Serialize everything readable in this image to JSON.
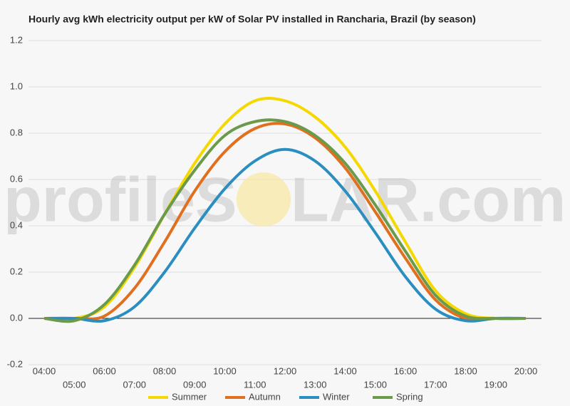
{
  "chart_data": {
    "type": "line",
    "title": "Hourly avg kWh electricity output per kW of Solar PV installed in Rancharia, Brazil (by season)",
    "watermark": [
      "profileS",
      "LAR.com"
    ],
    "categories": [
      "04:00",
      "05:00",
      "06:00",
      "07:00",
      "08:00",
      "09:00",
      "10:00",
      "11:00",
      "12:00",
      "13:00",
      "14:00",
      "15:00",
      "16:00",
      "17:00",
      "18:00",
      "19:00",
      "20:00"
    ],
    "series": [
      {
        "name": "Summer",
        "color": "#f5d800",
        "values": [
          0,
          0,
          0.05,
          0.22,
          0.45,
          0.67,
          0.84,
          0.94,
          0.94,
          0.87,
          0.74,
          0.55,
          0.33,
          0.12,
          0.02,
          0,
          0
        ]
      },
      {
        "name": "Autumn",
        "color": "#e07020",
        "values": [
          0,
          0,
          0.01,
          0.13,
          0.33,
          0.55,
          0.72,
          0.82,
          0.84,
          0.78,
          0.65,
          0.46,
          0.26,
          0.08,
          0,
          0,
          0
        ]
      },
      {
        "name": "Winter",
        "color": "#2a8fc0",
        "values": [
          0,
          0,
          -0.01,
          0.05,
          0.2,
          0.39,
          0.56,
          0.68,
          0.73,
          0.68,
          0.55,
          0.37,
          0.18,
          0.04,
          -0.01,
          0,
          0
        ]
      },
      {
        "name": "Spring",
        "color": "#6a9a4a",
        "values": [
          0,
          -0.01,
          0.06,
          0.23,
          0.45,
          0.64,
          0.79,
          0.85,
          0.85,
          0.79,
          0.67,
          0.49,
          0.29,
          0.1,
          0.01,
          0,
          0
        ]
      }
    ],
    "ylim": [
      -0.2,
      1.2
    ],
    "yticks": [
      -0.2,
      {
        "value": 0,
        "label": "0.0"
      },
      0.2,
      0.4,
      0.6,
      0.8,
      {
        "value": 1,
        "label": "1.0"
      },
      1.2
    ],
    "grid": true
  }
}
